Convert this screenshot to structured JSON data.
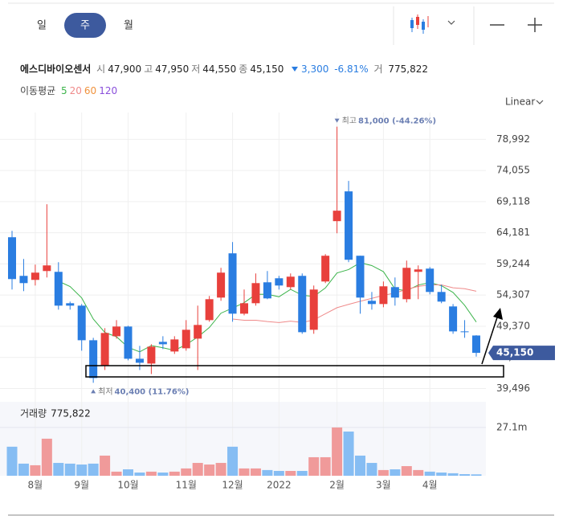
{
  "tabs": [
    "일",
    "주",
    "월"
  ],
  "selected_tab": 1,
  "stock": {
    "name": "에스디바이오센서",
    "quote": [
      {
        "label": "시",
        "value": "47,900"
      },
      {
        "label": "고",
        "value": "47,950"
      },
      {
        "label": "저",
        "value": "44,550"
      },
      {
        "label": "종",
        "value": "45,150"
      }
    ],
    "change": {
      "amount": "3,300",
      "percent": "-6.81%"
    },
    "volume": {
      "label": "거",
      "value": "775,822"
    }
  },
  "chart_data": {
    "type": "candlestick",
    "categories": [
      null,
      null,
      "8월",
      null,
      null,
      null,
      "9월",
      null,
      null,
      null,
      "10월",
      null,
      null,
      null,
      null,
      "11월",
      null,
      null,
      null,
      "12월",
      null,
      null,
      null,
      "2022",
      null,
      null,
      null,
      null,
      "2월",
      null,
      null,
      null,
      "3월",
      null,
      null,
      null,
      "4월",
      null,
      null,
      null,
      null
    ],
    "open": [
      63475,
      57353,
      56715,
      58118,
      57990,
      53016,
      52633,
      47149,
      43067,
      47787,
      49318,
      44215,
      43450,
      46894,
      45363,
      45873,
      47404,
      50338,
      53909,
      60925,
      51358,
      53016,
      56332,
      56970,
      55567,
      57353,
      48807,
      56460,
      66026,
      70746,
      60542,
      53399,
      52888,
      55567,
      53654,
      57990,
      58500,
      54802,
      52506,
      48552,
      47900
    ],
    "high": [
      64496,
      60032,
      59138,
      68705,
      59521,
      53271,
      52888,
      47532,
      49062,
      50338,
      49445,
      46256,
      46511,
      47787,
      47787,
      50338,
      52633,
      54164,
      58628,
      62710,
      55185,
      57735,
      58118,
      57353,
      57735,
      57735,
      55822,
      60797,
      81000,
      72404,
      60542,
      54802,
      56460,
      57098,
      59776,
      59011,
      58756,
      55950,
      52888,
      50338,
      47950
    ],
    "low": [
      55185,
      54929,
      55822,
      57098,
      51996,
      51996,
      45491,
      40400,
      42430,
      47404,
      43960,
      42430,
      41792,
      45746,
      44980,
      45491,
      42430,
      50083,
      53399,
      50083,
      51103,
      52633,
      53654,
      55185,
      55185,
      48170,
      48170,
      56205,
      64113,
      59521,
      51358,
      51996,
      52378,
      52633,
      53144,
      53654,
      54419,
      53016,
      48170,
      47532,
      44550
    ],
    "close": [
      56843,
      56205,
      57863,
      59011,
      52633,
      52633,
      47149,
      41154,
      48297,
      49318,
      44215,
      43578,
      46129,
      46511,
      47277,
      48807,
      49572,
      53654,
      57863,
      51358,
      53016,
      56205,
      53782,
      55822,
      57225,
      48425,
      55185,
      60542,
      67684,
      59904,
      53909,
      52888,
      55695,
      53909,
      58628,
      58373,
      54802,
      53271,
      48552,
      48425,
      45150
    ],
    "up_color": "#e8403c",
    "down_color": "#2a7de1",
    "ylim": [
      38025,
      83246
    ],
    "yticks": [
      {
        "value": 78992,
        "label": "78,992"
      },
      {
        "value": 74055,
        "label": "74,055"
      },
      {
        "value": 69118,
        "label": "69,118"
      },
      {
        "value": 64181,
        "label": "64,181"
      },
      {
        "value": 59244,
        "label": "59,244"
      },
      {
        "value": 54307,
        "label": "54,307"
      },
      {
        "value": 49370,
        "label": "49,370"
      },
      {
        "value": 44433,
        "label": "44,433"
      },
      {
        "value": 39496,
        "label": "39,496"
      }
    ],
    "grid": true,
    "scale": "Linear",
    "moving_averages": {
      "label": "이동평균",
      "series": [
        {
          "name": "5",
          "color": "#3cb44b",
          "values": [
            null,
            null,
            null,
            null,
            56511,
            55669,
            53858,
            50516,
            48373,
            47710,
            46027,
            45312,
            46307,
            45950,
            45542,
            46460,
            47659,
            49164,
            51435,
            52251,
            53093,
            54419,
            54445,
            54037,
            55210,
            54292,
            54088,
            55440,
            57812,
            58348,
            59445,
            58985,
            58016,
            55261,
            55006,
            55899,
            56281,
            55797,
            54725,
            52685,
            50040
          ]
        },
        {
          "name": "20",
          "color": "#ef8a8a",
          "values": [
            null,
            null,
            null,
            null,
            null,
            null,
            null,
            null,
            null,
            null,
            null,
            null,
            null,
            null,
            null,
            null,
            null,
            null,
            null,
            50504,
            50312,
            50312,
            50108,
            49949,
            50178,
            49968,
            50370,
            51339,
            52308,
            52838,
            53322,
            53788,
            54266,
            54636,
            55204,
            55682,
            55943,
            55924,
            55459,
            55312,
            54919
          ]
        },
        {
          "name": "60",
          "color": "#f0923c"
        },
        {
          "name": "120",
          "color": "#8a4fdb"
        }
      ]
    },
    "last_price": {
      "value": 45150,
      "label": "45,150"
    },
    "annotations": {
      "high": {
        "label": "최고",
        "text": "81,000 (-44.26%)"
      },
      "low": {
        "label": "최저",
        "text": "40,400 (11.76%)"
      }
    },
    "volume": {
      "label": "거래량",
      "current": {
        "value": 775822,
        "label": "775,822"
      },
      "values": [
        16300000,
        6800000,
        5900000,
        20800000,
        7200000,
        6800000,
        6300000,
        6800000,
        11300000,
        2300000,
        3600000,
        1800000,
        2300000,
        1800000,
        2300000,
        4100000,
        7200000,
        6300000,
        7200000,
        16300000,
        4100000,
        4100000,
        3200000,
        2700000,
        2700000,
        2700000,
        10400000,
        10400000,
        27100000,
        24800000,
        11300000,
        7200000,
        3200000,
        3600000,
        5400000,
        3200000,
        2300000,
        1800000,
        1400000,
        900000,
        775822
      ],
      "up_color": "#f09a9a",
      "down_color": "#86bdf3",
      "ylim": [
        0,
        41500000
      ],
      "yticks": [
        {
          "value": 27100000,
          "label": "27.1m"
        }
      ]
    }
  }
}
